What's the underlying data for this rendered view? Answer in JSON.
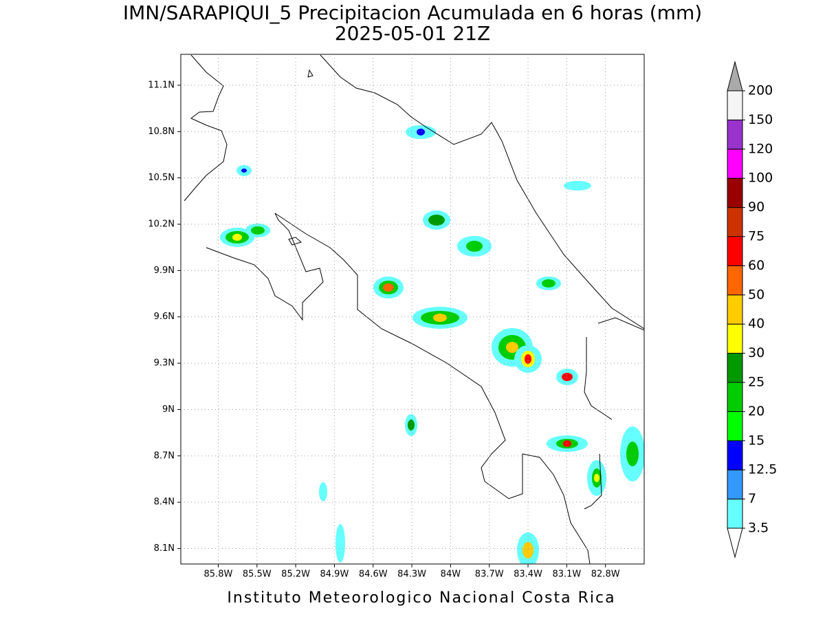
{
  "title": "IMN/SARAPIQUI_5 Precipitacion Acumulada en 6 horas (mm)",
  "subtitle": "2025-05-01 21Z",
  "footer": "Instituto Meteorologico Nacional Costa Rica",
  "map": {
    "xlim": [
      -86.09,
      -82.5
    ],
    "ylim": [
      8.0,
      11.3
    ],
    "xticks": [
      {
        "value": -85.8,
        "label": "85.8W"
      },
      {
        "value": -85.5,
        "label": "85.5W"
      },
      {
        "value": -85.2,
        "label": "85.2W"
      },
      {
        "value": -84.9,
        "label": "84.9W"
      },
      {
        "value": -84.6,
        "label": "84.6W"
      },
      {
        "value": -84.3,
        "label": "84.3W"
      },
      {
        "value": -84,
        "label": "84W"
      },
      {
        "value": -83.7,
        "label": "83.7W"
      },
      {
        "value": -83.4,
        "label": "83.4W"
      },
      {
        "value": -83.1,
        "label": "83.1W"
      },
      {
        "value": -82.8,
        "label": "82.8W"
      }
    ],
    "yticks": [
      {
        "value": 8.1,
        "label": "8.1N"
      },
      {
        "value": 8.4,
        "label": "8.4N"
      },
      {
        "value": 8.7,
        "label": "8.7N"
      },
      {
        "value": 9,
        "label": "9N"
      },
      {
        "value": 9.3,
        "label": "9.3N"
      },
      {
        "value": 9.6,
        "label": "9.6N"
      },
      {
        "value": 9.9,
        "label": "9.9N"
      },
      {
        "value": 10.2,
        "label": "10.2N"
      },
      {
        "value": 10.5,
        "label": "10.5N"
      },
      {
        "value": 10.8,
        "label": "10.8N"
      },
      {
        "value": 11.1,
        "label": "11.1N"
      }
    ],
    "grid": true
  },
  "colorbar": {
    "levels": [
      3.5,
      7,
      12.5,
      15,
      20,
      25,
      30,
      40,
      50,
      60,
      75,
      90,
      100,
      120,
      150,
      200
    ],
    "colors": [
      "#66ffff",
      "#3399ff",
      "#0000ff",
      "#00ff00",
      "#00cc00",
      "#009900",
      "#ffff00",
      "#ffcc00",
      "#ff6600",
      "#ff0000",
      "#cc3300",
      "#990000",
      "#ff00ff",
      "#9933cc",
      "#f5f5f5"
    ],
    "over_color": "#aaaaaa",
    "under_color": "#ffffff"
  }
}
